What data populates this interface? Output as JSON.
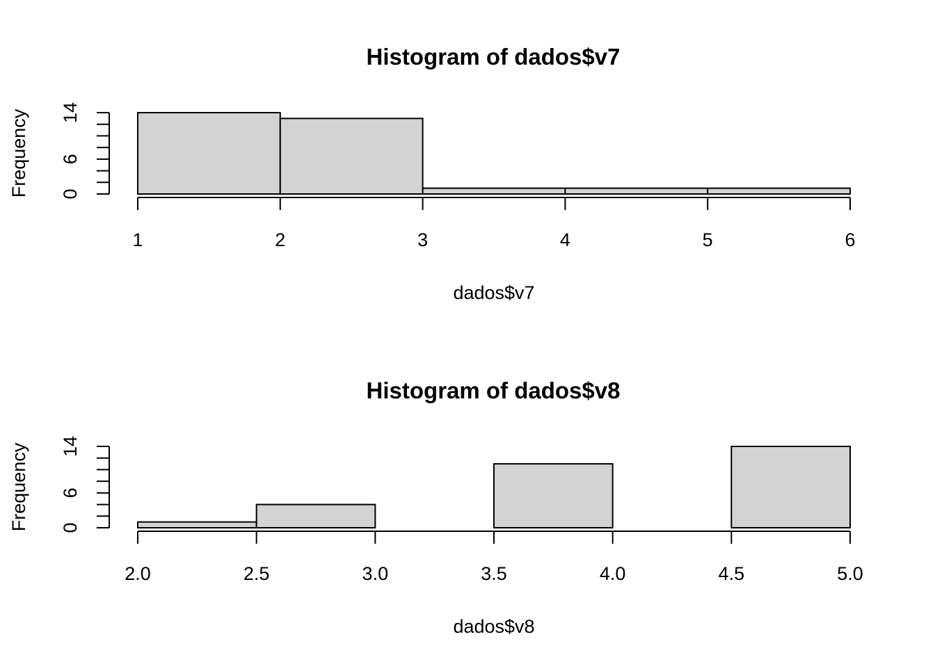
{
  "chart_data": [
    {
      "type": "bar",
      "title": "Histogram of dados$v7",
      "xlabel": "dados$v7",
      "ylabel": "Frequency",
      "bins": [
        {
          "x0": 1,
          "x1": 2,
          "count": 14
        },
        {
          "x0": 2,
          "x1": 3,
          "count": 13
        },
        {
          "x0": 3,
          "x1": 4,
          "count": 1
        },
        {
          "x0": 4,
          "x1": 5,
          "count": 1
        },
        {
          "x0": 5,
          "x1": 6,
          "count": 1
        }
      ],
      "xlim": [
        1,
        6
      ],
      "ylim": [
        0,
        14
      ],
      "xticks": [
        "1",
        "2",
        "3",
        "4",
        "5",
        "6"
      ],
      "xtick_values": [
        1,
        2,
        3,
        4,
        5,
        6
      ],
      "yticks": [
        "0",
        "6",
        "14"
      ],
      "ytick_values": [
        0,
        6,
        14
      ],
      "yminor_step": 2,
      "grid": false,
      "bar_color": "#d3d3d3"
    },
    {
      "type": "bar",
      "title": "Histogram of dados$v8",
      "xlabel": "dados$v8",
      "ylabel": "Frequency",
      "bins": [
        {
          "x0": 2.0,
          "x1": 2.5,
          "count": 1
        },
        {
          "x0": 2.5,
          "x1": 3.0,
          "count": 4
        },
        {
          "x0": 3.0,
          "x1": 3.5,
          "count": 0
        },
        {
          "x0": 3.5,
          "x1": 4.0,
          "count": 11
        },
        {
          "x0": 4.0,
          "x1": 4.5,
          "count": 0
        },
        {
          "x0": 4.5,
          "x1": 5.0,
          "count": 14
        }
      ],
      "xlim": [
        2.0,
        5.0
      ],
      "ylim": [
        0,
        14
      ],
      "xticks": [
        "2.0",
        "2.5",
        "3.0",
        "3.5",
        "4.0",
        "4.5",
        "5.0"
      ],
      "xtick_values": [
        2.0,
        2.5,
        3.0,
        3.5,
        4.0,
        4.5,
        5.0
      ],
      "yticks": [
        "0",
        "6",
        "14"
      ],
      "ytick_values": [
        0,
        6,
        14
      ],
      "yminor_step": 2,
      "grid": false,
      "bar_color": "#d3d3d3"
    }
  ]
}
